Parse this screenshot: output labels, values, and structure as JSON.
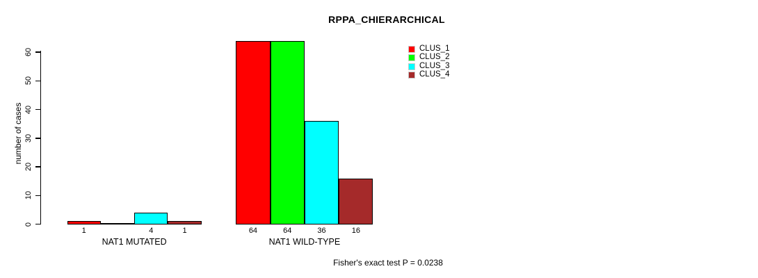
{
  "chart_data": {
    "type": "bar",
    "title": "RPPA_CHIERARCHICAL",
    "ylabel": "number of cases",
    "xlabel": "",
    "categories": [
      "NAT1 MUTATED",
      "NAT1 WILD-TYPE"
    ],
    "series": [
      {
        "name": "CLUS_1",
        "color": "#ff0000",
        "values": [
          1,
          64
        ]
      },
      {
        "name": "CLUS_2",
        "color": "#00ff00",
        "values": [
          0,
          64
        ]
      },
      {
        "name": "CLUS_3",
        "color": "#00ffff",
        "values": [
          4,
          36
        ]
      },
      {
        "name": "CLUS_4",
        "color": "#a52a2a",
        "values": [
          1,
          16
        ]
      }
    ],
    "bar_value_labels": [
      [
        "1",
        "",
        "4",
        "1"
      ],
      [
        "64",
        "64",
        "36",
        "16"
      ]
    ],
    "ylim": [
      0,
      60
    ],
    "yticks": [
      0,
      10,
      20,
      30,
      40,
      50,
      60
    ],
    "grid": false,
    "legend": {
      "position": "top-right",
      "entries": [
        "CLUS_1",
        "CLUS_2",
        "CLUS_3",
        "CLUS_4"
      ]
    },
    "annotation": "Fisher's exact test P = 0.0238"
  }
}
